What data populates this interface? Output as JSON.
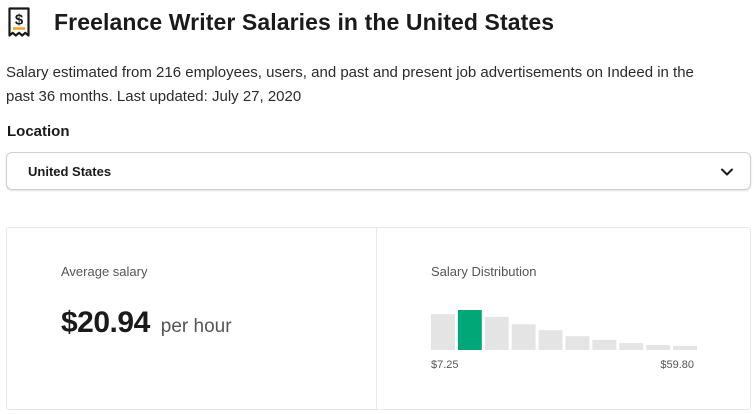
{
  "page": {
    "title": "Freelance Writer Salaries in the United States",
    "subtitle": "Salary estimated from 216 employees, users, and past and present job advertisements on Indeed in the past 36 months. Last updated: July 27, 2020",
    "icon": "dollar-document-icon"
  },
  "location": {
    "label": "Location",
    "value": "United States",
    "icon": "chevron-down-icon"
  },
  "average": {
    "label": "Average salary",
    "value": "$20.94",
    "unit": "per hour"
  },
  "distribution": {
    "label": "Salary Distribution",
    "min_label": "$7.25",
    "max_label": "$59.80",
    "highlight_color": "#00a878",
    "bar_color": "#e4e4e4",
    "highlight_index": 1,
    "relative_heights": [
      0.78,
      0.87,
      0.72,
      0.56,
      0.43,
      0.3,
      0.22,
      0.15,
      0.11,
      0.09
    ]
  }
}
